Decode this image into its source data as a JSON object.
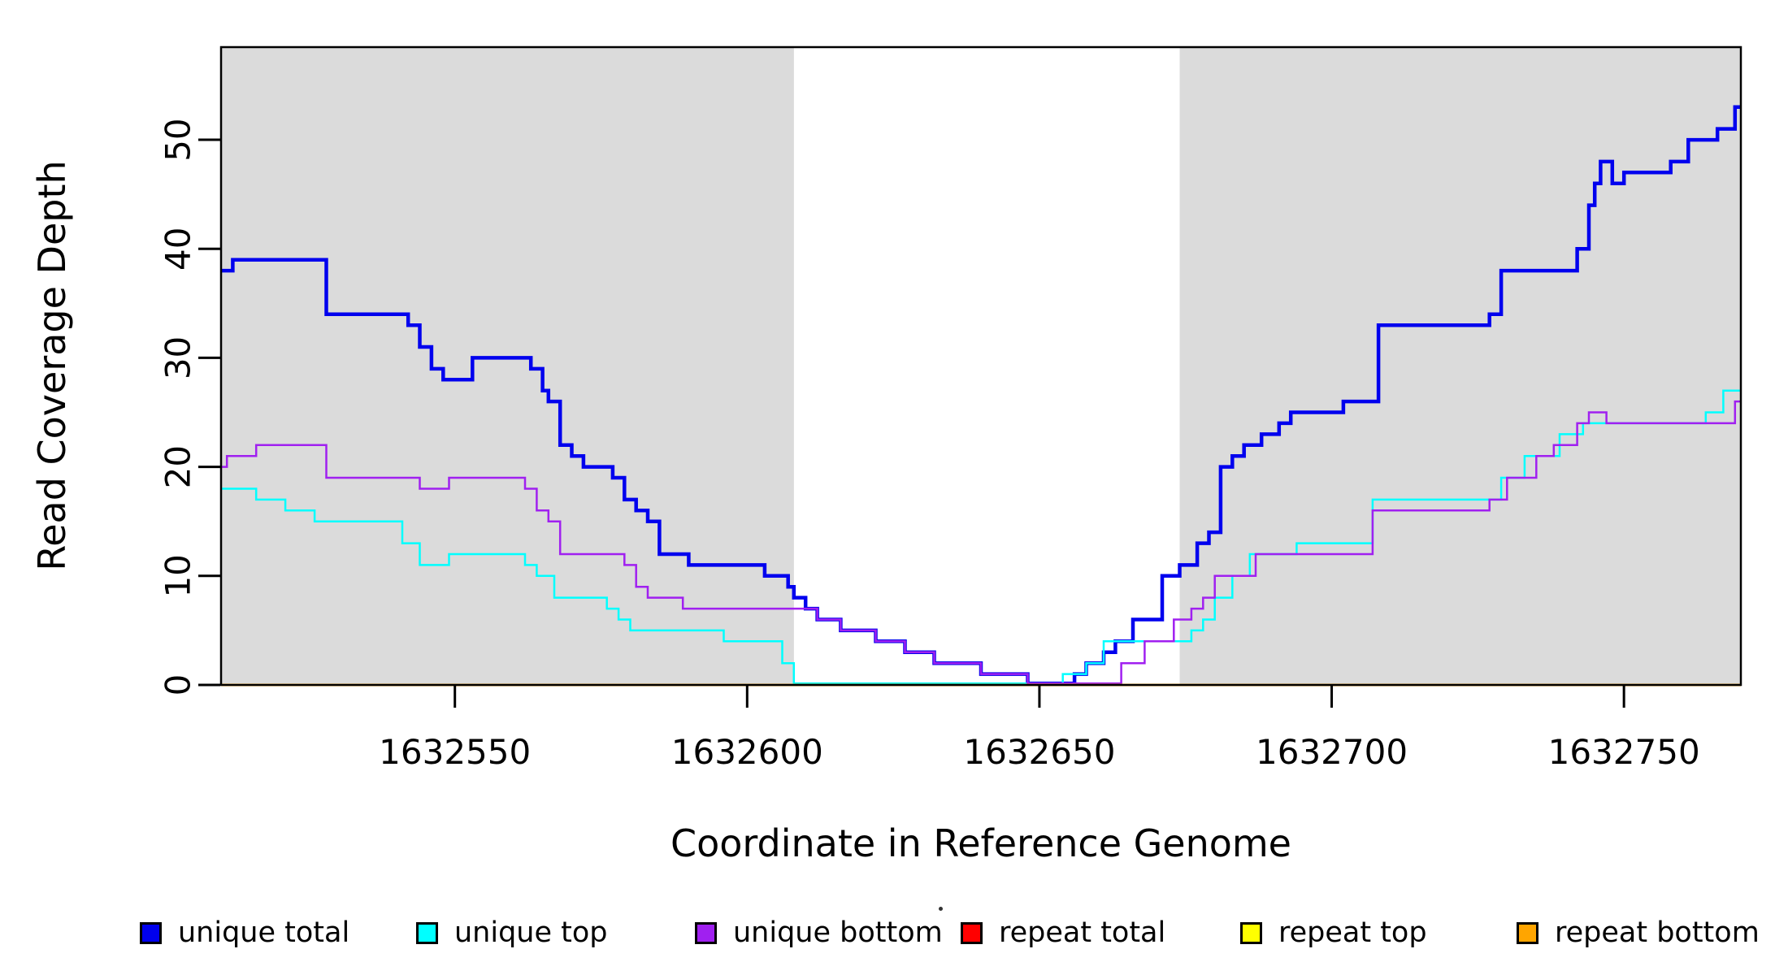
{
  "chart_data": {
    "type": "line",
    "subtype": "step",
    "title": "",
    "xlabel": "Coordinate in Reference Genome",
    "ylabel": "Read Coverage Depth",
    "xlim": [
      1632510,
      1632770
    ],
    "ylim": [
      0,
      58.5
    ],
    "x_ticks": [
      {
        "value": 1632550,
        "label": "1632550"
      },
      {
        "value": 1632600,
        "label": "1632600"
      },
      {
        "value": 1632650,
        "label": "1632650"
      },
      {
        "value": 1632700,
        "label": "1632700"
      },
      {
        "value": 1632750,
        "label": "1632750"
      }
    ],
    "y_ticks": [
      {
        "value": 0,
        "label": "0"
      },
      {
        "value": 10,
        "label": "10"
      },
      {
        "value": 20,
        "label": "20"
      },
      {
        "value": 30,
        "label": "30"
      },
      {
        "value": 40,
        "label": "40"
      },
      {
        "value": 50,
        "label": "50"
      }
    ],
    "grid": false,
    "legend_position": "bottom",
    "background_color": "#ffffff",
    "shaded_regions": [
      {
        "x0": 1632510,
        "x1": 1632608,
        "color": "#DBDBDB"
      },
      {
        "x0": 1632674,
        "x1": 1632770,
        "color": "#DBDBDB"
      }
    ],
    "series": [
      {
        "name": "unique total",
        "color": "#0000EE",
        "linewidth": 4.5,
        "points": [
          [
            1632510,
            38
          ],
          [
            1632512,
            39
          ],
          [
            1632528,
            34
          ],
          [
            1632542,
            33
          ],
          [
            1632544,
            31
          ],
          [
            1632546,
            29
          ],
          [
            1632548,
            28
          ],
          [
            1632553,
            30
          ],
          [
            1632563,
            29
          ],
          [
            1632565,
            27
          ],
          [
            1632566,
            26
          ],
          [
            1632568,
            22
          ],
          [
            1632570,
            21
          ],
          [
            1632572,
            20
          ],
          [
            1632577,
            19
          ],
          [
            1632579,
            17
          ],
          [
            1632581,
            16
          ],
          [
            1632583,
            15
          ],
          [
            1632585,
            12
          ],
          [
            1632590,
            11
          ],
          [
            1632603,
            10
          ],
          [
            1632607,
            9
          ],
          [
            1632608,
            8
          ],
          [
            1632610,
            7
          ],
          [
            1632612,
            6
          ],
          [
            1632616,
            5
          ],
          [
            1632622,
            4
          ],
          [
            1632627,
            3
          ],
          [
            1632632,
            2
          ],
          [
            1632640,
            1
          ],
          [
            1632648,
            0
          ],
          [
            1632656,
            1
          ],
          [
            1632658,
            2
          ],
          [
            1632661,
            3
          ],
          [
            1632663,
            4
          ],
          [
            1632666,
            6
          ],
          [
            1632671,
            10
          ],
          [
            1632674,
            11
          ],
          [
            1632677,
            13
          ],
          [
            1632679,
            14
          ],
          [
            1632681,
            20
          ],
          [
            1632683,
            21
          ],
          [
            1632685,
            22
          ],
          [
            1632688,
            23
          ],
          [
            1632691,
            24
          ],
          [
            1632693,
            25
          ],
          [
            1632702,
            26
          ],
          [
            1632708,
            33
          ],
          [
            1632727,
            34
          ],
          [
            1632729,
            38
          ],
          [
            1632742,
            40
          ],
          [
            1632744,
            44
          ],
          [
            1632745,
            46
          ],
          [
            1632746,
            48
          ],
          [
            1632748,
            46
          ],
          [
            1632750,
            47
          ],
          [
            1632758,
            48
          ],
          [
            1632761,
            50
          ],
          [
            1632766,
            51
          ],
          [
            1632769,
            53
          ],
          [
            1632770,
            53
          ]
        ]
      },
      {
        "name": "unique top",
        "color": "#00FFFF",
        "linewidth": 2.5,
        "points": [
          [
            1632510,
            18
          ],
          [
            1632516,
            17
          ],
          [
            1632521,
            16
          ],
          [
            1632526,
            15
          ],
          [
            1632541,
            13
          ],
          [
            1632544,
            11
          ],
          [
            1632549,
            12
          ],
          [
            1632562,
            11
          ],
          [
            1632564,
            10
          ],
          [
            1632567,
            8
          ],
          [
            1632576,
            7
          ],
          [
            1632578,
            6
          ],
          [
            1632580,
            5
          ],
          [
            1632596,
            4
          ],
          [
            1632606,
            2
          ],
          [
            1632608,
            0
          ],
          [
            1632654,
            1
          ],
          [
            1632658,
            2
          ],
          [
            1632661,
            4
          ],
          [
            1632676,
            5
          ],
          [
            1632678,
            6
          ],
          [
            1632680,
            8
          ],
          [
            1632683,
            10
          ],
          [
            1632686,
            12
          ],
          [
            1632694,
            13
          ],
          [
            1632707,
            17
          ],
          [
            1632729,
            19
          ],
          [
            1632733,
            21
          ],
          [
            1632739,
            23
          ],
          [
            1632743,
            24
          ],
          [
            1632764,
            25
          ],
          [
            1632767,
            27
          ],
          [
            1632770,
            27
          ]
        ]
      },
      {
        "name": "unique bottom",
        "color": "#A020F0",
        "linewidth": 2.5,
        "points": [
          [
            1632510,
            20
          ],
          [
            1632511,
            21
          ],
          [
            1632516,
            22
          ],
          [
            1632528,
            19
          ],
          [
            1632544,
            18
          ],
          [
            1632549,
            19
          ],
          [
            1632562,
            18
          ],
          [
            1632564,
            16
          ],
          [
            1632566,
            15
          ],
          [
            1632568,
            12
          ],
          [
            1632579,
            11
          ],
          [
            1632581,
            9
          ],
          [
            1632583,
            8
          ],
          [
            1632589,
            7
          ],
          [
            1632612,
            6
          ],
          [
            1632616,
            5
          ],
          [
            1632622,
            4
          ],
          [
            1632627,
            3
          ],
          [
            1632632,
            2
          ],
          [
            1632640,
            1
          ],
          [
            1632648,
            0
          ],
          [
            1632664,
            2
          ],
          [
            1632668,
            4
          ],
          [
            1632673,
            6
          ],
          [
            1632676,
            7
          ],
          [
            1632678,
            8
          ],
          [
            1632680,
            10
          ],
          [
            1632687,
            12
          ],
          [
            1632707,
            16
          ],
          [
            1632727,
            17
          ],
          [
            1632730,
            19
          ],
          [
            1632735,
            21
          ],
          [
            1632738,
            22
          ],
          [
            1632742,
            24
          ],
          [
            1632744,
            25
          ],
          [
            1632747,
            24
          ],
          [
            1632769,
            26
          ],
          [
            1632770,
            26
          ]
        ]
      },
      {
        "name": "repeat total",
        "color": "#FF0000",
        "linewidth": 2.5,
        "points": [
          [
            1632510,
            0
          ],
          [
            1632770,
            0
          ]
        ]
      },
      {
        "name": "repeat top",
        "color": "#FFFF00",
        "linewidth": 2.5,
        "points": [
          [
            1632510,
            0
          ],
          [
            1632770,
            0
          ]
        ]
      },
      {
        "name": "repeat bottom",
        "color": "#FFA500",
        "linewidth": 3,
        "points": [
          [
            1632510,
            0
          ],
          [
            1632770,
            0
          ]
        ]
      }
    ],
    "draw_order": [
      "repeat total",
      "repeat top",
      "unique total",
      "unique top",
      "unique bottom",
      "repeat bottom"
    ]
  },
  "legend": {
    "entries": [
      {
        "label": "unique total",
        "color": "#0000EE"
      },
      {
        "label": "unique top",
        "color": "#00FFFF"
      },
      {
        "label": "unique bottom",
        "color": "#A020F0"
      },
      {
        "label": "repeat total",
        "color": "#FF0000"
      },
      {
        "label": "repeat top",
        "color": "#FFFF00"
      },
      {
        "label": "repeat bottom",
        "color": "#FFA500"
      }
    ]
  }
}
